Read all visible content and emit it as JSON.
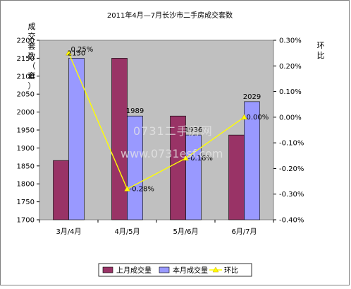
{
  "chart_data": {
    "type": "bar",
    "title": "2011年4月—7月长沙市二手房成交套数",
    "ylabel": "成交套数（套）",
    "ylabel_right": "环比",
    "categories": [
      "3月/4月",
      "4月/5月",
      "5月/6月",
      "6月/7月"
    ],
    "ylim": [
      1700,
      2200
    ],
    "y_ticks": [
      1700,
      1750,
      1800,
      1850,
      1900,
      1950,
      2000,
      2050,
      2100,
      2150,
      2200
    ],
    "y2lim": [
      -0.4,
      0.3
    ],
    "y2_ticks": [
      "0.30%",
      "0.20%",
      "0.10%",
      "0.00%",
      "-0.10%",
      "-0.20%",
      "-0.30%",
      "-0.40%"
    ],
    "y2_tick_values": [
      0.3,
      0.2,
      0.1,
      0.0,
      -0.1,
      -0.2,
      -0.3,
      -0.4
    ],
    "series": [
      {
        "name": "上月成交量",
        "values": [
          1865,
          2150,
          1989,
          1936
        ],
        "color": "#993366",
        "labels": [
          null,
          null,
          null,
          null
        ]
      },
      {
        "name": "本月成交量",
        "values": [
          2150,
          1989,
          1936,
          2029
        ],
        "color": "#9999ff",
        "labels": [
          "2150",
          "1989",
          "1936",
          "2029"
        ]
      },
      {
        "name": "环比",
        "type": "line",
        "axis": "right",
        "values": [
          0.25,
          -0.28,
          -0.16,
          0.0
        ],
        "color": "#ffff00",
        "labels": [
          "0.25%",
          "-0.28%",
          "-0.16%",
          "0.00%"
        ]
      }
    ],
    "watermark": [
      "0731二手房网",
      "www.0731esf.com"
    ],
    "grid": false,
    "legend": "bottom",
    "plot_background": "#c0c0c0"
  }
}
